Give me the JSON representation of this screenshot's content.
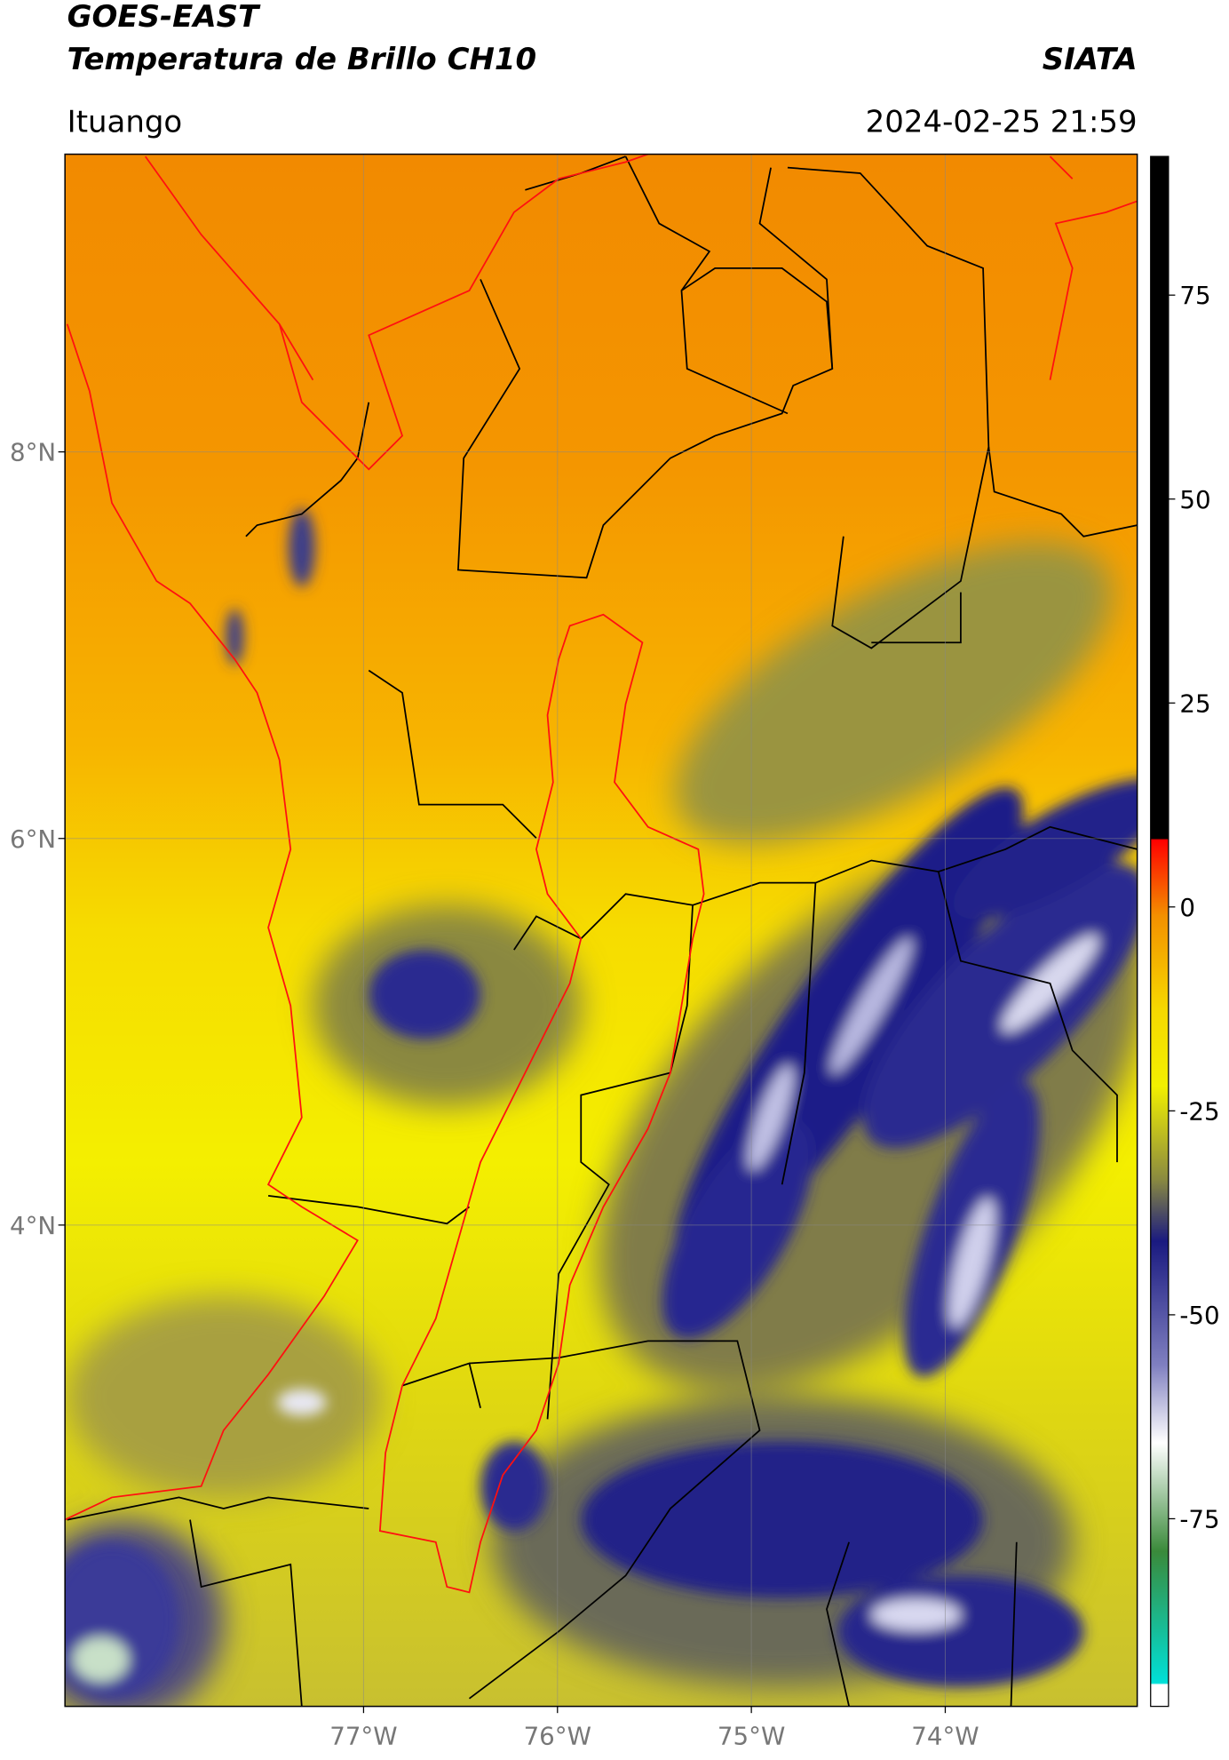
{
  "map": {
    "title": "GOES-EAST",
    "subtitle": "Temperatura de Brillo CH10",
    "source": "SIATA",
    "region": "Ituango",
    "datetime": "2024-02-25 21:59",
    "xlim": [
      -78.54,
      -73.01
    ],
    "ylim": [
      1.51,
      9.54
    ],
    "xticks": [
      {
        "value": -77,
        "label": "77°W"
      },
      {
        "value": -76,
        "label": "76°W"
      },
      {
        "value": -75,
        "label": "75°W"
      },
      {
        "value": -74,
        "label": "74°W"
      }
    ],
    "yticks": [
      {
        "value": 8,
        "label": "8°N"
      },
      {
        "value": 6,
        "label": "6°N"
      },
      {
        "value": 4,
        "label": "4°N"
      }
    ],
    "grid": true,
    "colorbar": {
      "lim": [
        -98,
        92
      ],
      "ticks": [
        75,
        50,
        25,
        0,
        -25,
        -50,
        -75
      ]
    }
  }
}
